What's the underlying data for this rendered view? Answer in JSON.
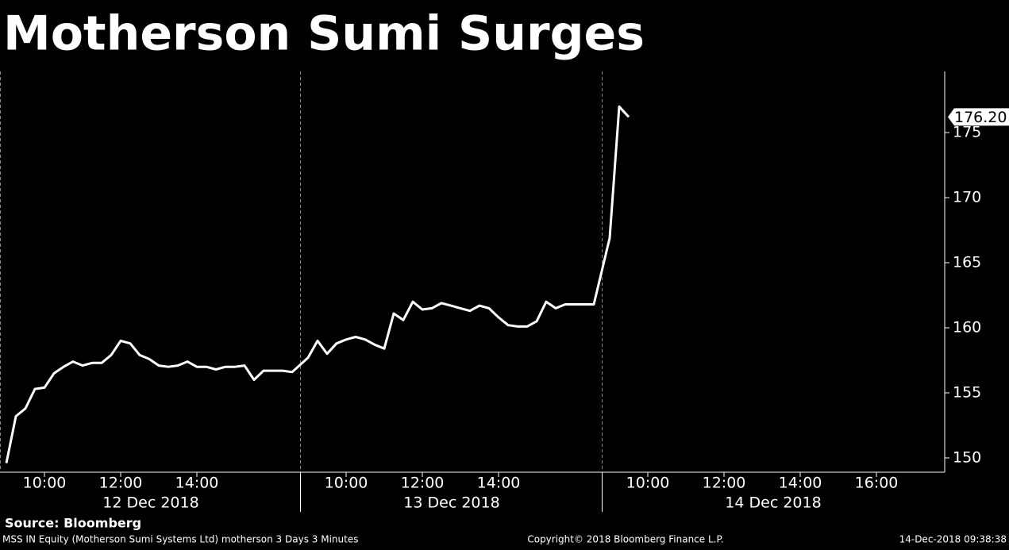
{
  "chart_data": {
    "type": "line",
    "title": "Motherson Sumi Surges",
    "days": [
      "12 Dec 2018",
      "13 Dec 2018",
      "14 Dec 2018"
    ],
    "x": [
      "12 Dec 2018 09:00",
      "12 Dec 2018 09:15",
      "12 Dec 2018 09:30",
      "12 Dec 2018 09:45",
      "12 Dec 2018 10:00",
      "12 Dec 2018 10:15",
      "12 Dec 2018 10:30",
      "12 Dec 2018 10:45",
      "12 Dec 2018 11:00",
      "12 Dec 2018 11:15",
      "12 Dec 2018 11:30",
      "12 Dec 2018 11:45",
      "12 Dec 2018 12:00",
      "12 Dec 2018 12:15",
      "12 Dec 2018 12:30",
      "12 Dec 2018 12:45",
      "12 Dec 2018 13:00",
      "12 Dec 2018 13:15",
      "12 Dec 2018 13:30",
      "12 Dec 2018 13:45",
      "12 Dec 2018 14:00",
      "12 Dec 2018 14:15",
      "12 Dec 2018 14:30",
      "12 Dec 2018 14:45",
      "12 Dec 2018 15:00",
      "12 Dec 2018 15:15",
      "12 Dec 2018 15:30",
      "12 Dec 2018 15:45",
      "12 Dec 2018 16:00",
      "12 Dec 2018 16:15",
      "12 Dec 2018 16:30",
      "13 Dec 2018 09:00",
      "13 Dec 2018 09:15",
      "13 Dec 2018 09:30",
      "13 Dec 2018 09:45",
      "13 Dec 2018 10:00",
      "13 Dec 2018 10:15",
      "13 Dec 2018 10:30",
      "13 Dec 2018 10:45",
      "13 Dec 2018 11:00",
      "13 Dec 2018 11:15",
      "13 Dec 2018 11:30",
      "13 Dec 2018 11:45",
      "13 Dec 2018 12:00",
      "13 Dec 2018 12:15",
      "13 Dec 2018 12:30",
      "13 Dec 2018 12:45",
      "13 Dec 2018 13:00",
      "13 Dec 2018 13:15",
      "13 Dec 2018 13:30",
      "13 Dec 2018 13:45",
      "13 Dec 2018 14:00",
      "13 Dec 2018 14:15",
      "13 Dec 2018 14:30",
      "13 Dec 2018 14:45",
      "13 Dec 2018 15:00",
      "13 Dec 2018 15:15",
      "13 Dec 2018 15:30",
      "13 Dec 2018 15:45",
      "13 Dec 2018 16:00",
      "13 Dec 2018 16:15",
      "13 Dec 2018 16:30",
      "14 Dec 2018 09:00",
      "14 Dec 2018 09:15",
      "14 Dec 2018 09:30"
    ],
    "values": [
      149.6,
      153.2,
      153.8,
      155.3,
      155.4,
      156.5,
      157.0,
      157.4,
      157.1,
      157.3,
      157.3,
      157.9,
      159.0,
      158.8,
      157.9,
      157.6,
      157.1,
      157.0,
      157.1,
      157.4,
      157.0,
      157.0,
      156.8,
      157.0,
      157.0,
      157.1,
      156.0,
      156.7,
      156.7,
      156.7,
      156.6,
      157.7,
      159.0,
      158.0,
      158.8,
      159.1,
      159.3,
      159.1,
      158.7,
      158.4,
      161.1,
      160.6,
      162.0,
      161.4,
      161.5,
      161.9,
      161.7,
      161.5,
      161.3,
      161.7,
      161.5,
      160.8,
      160.2,
      160.1,
      160.1,
      160.5,
      162.0,
      161.5,
      161.8,
      161.8,
      161.8,
      161.8,
      166.9,
      177.0,
      176.2
    ],
    "value_labels": [
      null,
      null,
      null,
      null,
      null,
      null,
      null,
      null,
      null,
      null,
      null,
      null,
      null,
      null,
      null,
      null,
      null,
      null,
      null,
      null,
      null,
      null,
      null,
      null,
      null,
      null,
      null,
      null,
      null,
      null,
      null,
      null,
      null,
      null,
      null,
      null,
      null,
      null,
      null,
      null,
      null,
      null,
      null,
      null,
      null,
      null,
      null,
      null,
      null,
      null,
      null,
      null,
      null,
      null,
      null,
      null,
      null,
      null,
      null,
      null,
      null,
      null,
      null,
      null,
      "176.20"
    ],
    "color": "#ffffff",
    "ylim": [
      148.9,
      179.7
    ],
    "yticks": [
      150,
      155,
      160,
      165,
      170,
      175
    ],
    "xticks": [
      {
        "value": "12 Dec 2018 10:00",
        "label": "10:00"
      },
      {
        "value": "12 Dec 2018 12:00",
        "label": "12:00"
      },
      {
        "value": "12 Dec 2018 14:00",
        "label": "14:00"
      },
      {
        "value": "13 Dec 2018 10:00",
        "label": "10:00"
      },
      {
        "value": "13 Dec 2018 12:00",
        "label": "12:00"
      },
      {
        "value": "13 Dec 2018 14:00",
        "label": "14:00"
      },
      {
        "value": "14 Dec 2018 10:00",
        "label": "10:00"
      },
      {
        "value": "14 Dec 2018 12:00",
        "label": "12:00"
      },
      {
        "value": "14 Dec 2018 14:00",
        "label": "14:00"
      },
      {
        "value": "14 Dec 2018 16:00",
        "label": "16:00"
      }
    ],
    "source": "Source: Bloomberg",
    "footer_left": "MSS IN Equity (Motherson Sumi Systems Ltd) motherson 3 Days 3 Minutes",
    "footer_center": "Copyright© 2018 Bloomberg Finance L.P.",
    "footer_right": "14-Dec-2018 09:38:38"
  }
}
